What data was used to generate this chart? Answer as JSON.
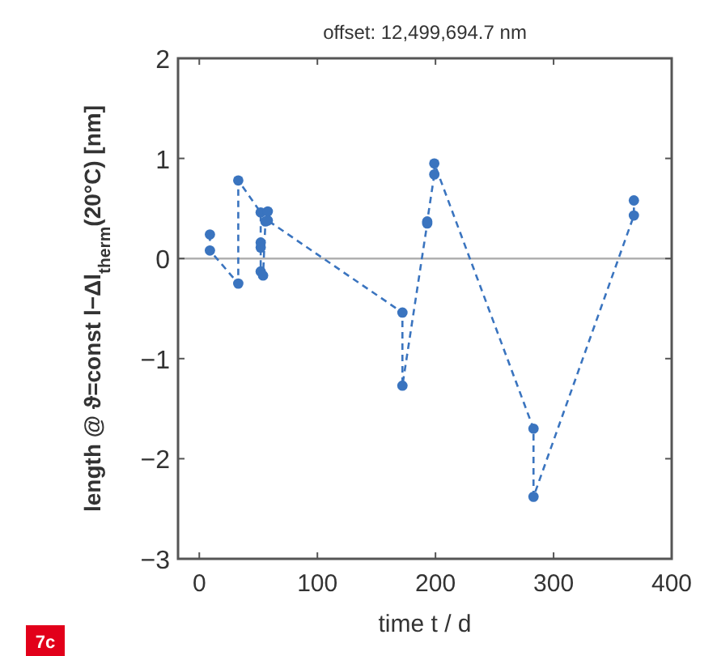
{
  "chart_data": {
    "type": "line",
    "title": "offset: 12,499,694.7 nm",
    "xlabel": "time t / d",
    "ylabel": "length @ ϑ=const   l−Δl$_{therm}$(20°C)  [nm]",
    "x": [
      9,
      9,
      33,
      33,
      52,
      52,
      52,
      52,
      54,
      56,
      58,
      58,
      172,
      172,
      193,
      193,
      199,
      199,
      283,
      283,
      368,
      368
    ],
    "series": [
      {
        "color": "#3a74bf",
        "values": [
          0.24,
          0.08,
          -0.25,
          0.78,
          0.46,
          0.16,
          0.11,
          -0.13,
          -0.17,
          0.37,
          0.47,
          0.38,
          -0.54,
          -1.27,
          0.35,
          0.37,
          0.84,
          0.95,
          -1.7,
          -2.38,
          0.43,
          0.58
        ]
      }
    ],
    "xlim": [
      -18,
      400
    ],
    "xticks": [
      0,
      100,
      200,
      300,
      400
    ],
    "ylim": [
      -3,
      2
    ],
    "yticks": [
      -3,
      -2,
      -1,
      0,
      1,
      2
    ],
    "ref_lines": [
      {
        "axis": "y",
        "value": 0,
        "color": "#b0b0b0"
      }
    ],
    "marker": "circle",
    "line_style": "dashed",
    "grid": false,
    "annotations": [
      "7c"
    ]
  }
}
